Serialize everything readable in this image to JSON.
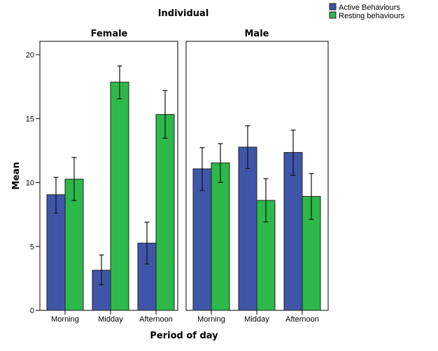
{
  "chart_data": {
    "type": "bar",
    "title": "Individual",
    "xlabel": "Period of day",
    "ylabel": "Mean",
    "ylim": [
      0,
      21
    ],
    "yticks": [
      0,
      5,
      10,
      15,
      20
    ],
    "grid": false,
    "error_bars": true,
    "legend": {
      "placement": "top-right",
      "entries": [
        {
          "name": "Active Behaviours",
          "color": "#3f56a8"
        },
        {
          "name": "Resting behaviours",
          "color": "#2db84a"
        }
      ]
    },
    "categories": [
      "Morning",
      "Midday",
      "Afternoon"
    ],
    "panels": [
      {
        "title": "Female",
        "series": [
          {
            "name": "Active Behaviours",
            "values": [
              9.05,
              3.14,
              5.26
            ],
            "err_low": [
              7.6,
              2.0,
              3.62
            ],
            "err_high": [
              10.4,
              4.33,
              6.9
            ]
          },
          {
            "name": "Resting behaviours",
            "values": [
              10.26,
              17.85,
              15.32
            ],
            "err_low": [
              8.59,
              16.55,
              13.46
            ],
            "err_high": [
              11.96,
              19.12,
              17.19
            ]
          }
        ]
      },
      {
        "title": "Male",
        "series": [
          {
            "name": "Active Behaviours",
            "values": [
              11.07,
              12.77,
              12.35
            ],
            "err_low": [
              9.39,
              11.09,
              10.56
            ],
            "err_high": [
              12.73,
              14.43,
              14.1
            ]
          },
          {
            "name": "Resting behaviours",
            "values": [
              11.53,
              8.6,
              8.91
            ],
            "err_low": [
              10.01,
              6.92,
              7.12
            ],
            "err_high": [
              13.04,
              10.3,
              10.7
            ]
          }
        ]
      }
    ]
  }
}
